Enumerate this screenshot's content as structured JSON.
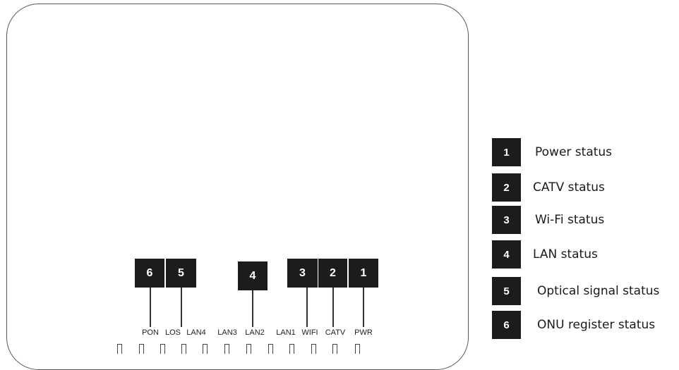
{
  "callouts": [
    {
      "number": "6",
      "port": "PON"
    },
    {
      "number": "5",
      "port": "LOS"
    },
    {
      "number": "4",
      "port": "LAN2"
    },
    {
      "number": "3",
      "port": "WIFI"
    },
    {
      "number": "2",
      "port": "CATV"
    },
    {
      "number": "1",
      "port": "PWR"
    }
  ],
  "port_labels": [
    "PON",
    "LOS",
    "LAN4",
    "LAN3",
    "LAN2",
    "LAN1",
    "WIFI",
    "CATV",
    "PWR"
  ],
  "legend": [
    {
      "number": "1",
      "text": "Power status"
    },
    {
      "number": "2",
      "text": "CATV status"
    },
    {
      "number": "3",
      "text": "Wi-Fi status"
    },
    {
      "number": "4",
      "text": "LAN status"
    },
    {
      "number": "5",
      "text": "Optical  signal status"
    },
    {
      "number": "6",
      "text": "ONU register status"
    }
  ],
  "colors": {
    "badge": "#1c1c1c",
    "outline": "#555555"
  }
}
